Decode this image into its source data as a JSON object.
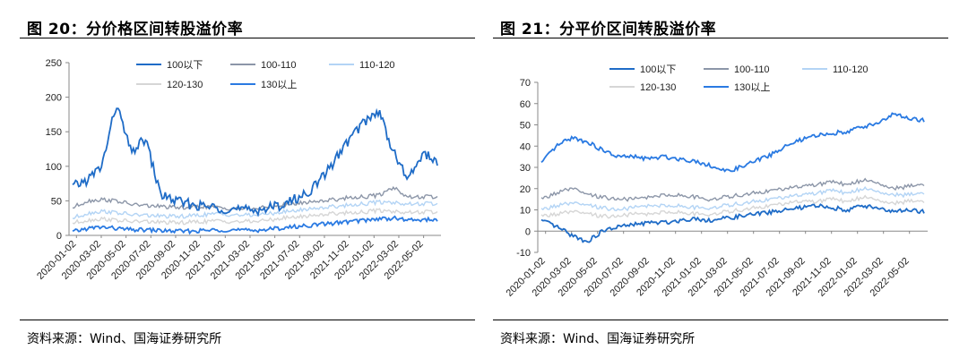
{
  "figures": [
    {
      "title": "图 20：分价格区间转股溢价率",
      "source": "资料来源：Wind、国海证券研究所"
    },
    {
      "title": "图 21：分平价区间转股溢价率",
      "source": "资料来源：Wind、国海证券研究所"
    }
  ],
  "colors": {
    "100以下": "#1f6cc7",
    "100-110": "#8c96a8",
    "110-120": "#b3d4f5",
    "120-130": "#d6d6d6",
    "130以上": "#2a7ae2"
  },
  "chart_data": [
    {
      "type": "line",
      "title": "",
      "x_ticks": [
        "2020-01-02",
        "2020-03-02",
        "2020-05-02",
        "2020-07-02",
        "2020-09-02",
        "2020-11-02",
        "2021-01-02",
        "2021-03-02",
        "2021-05-02",
        "2021-07-02",
        "2021-09-02",
        "2021-11-02",
        "2022-01-02",
        "2022-03-02",
        "2022-05-02"
      ],
      "ylim": [
        0,
        250
      ],
      "yticks": [
        0,
        50,
        100,
        150,
        200,
        250
      ],
      "legend": [
        "100以下",
        "100-110",
        "110-120",
        "120-130",
        "130以上"
      ],
      "series": [
        {
          "name": "100以下",
          "values": [
            70,
            80,
            100,
            190,
            120,
            140,
            60,
            50,
            45,
            42,
            40,
            38,
            36,
            38,
            42,
            50,
            60,
            80,
            110,
            140,
            165,
            180,
            120,
            80,
            120,
            105
          ]
        },
        {
          "name": "100-110",
          "values": [
            40,
            50,
            52,
            50,
            45,
            43,
            42,
            40,
            41,
            42,
            40,
            39,
            38,
            40,
            43,
            45,
            48,
            50,
            52,
            55,
            56,
            58,
            70,
            55,
            56,
            55
          ]
        },
        {
          "name": "110-120",
          "values": [
            25,
            32,
            35,
            33,
            30,
            29,
            28,
            27,
            28,
            30,
            31,
            30,
            29,
            30,
            33,
            35,
            38,
            40,
            42,
            44,
            46,
            48,
            48,
            45,
            46,
            45
          ]
        },
        {
          "name": "120-130",
          "values": [
            18,
            22,
            24,
            22,
            20,
            20,
            19,
            18,
            19,
            20,
            21,
            20,
            20,
            21,
            24,
            26,
            28,
            30,
            32,
            33,
            34,
            36,
            35,
            33,
            34,
            33
          ]
        },
        {
          "name": "130以上",
          "values": [
            5,
            10,
            12,
            10,
            8,
            8,
            7,
            6,
            6,
            7,
            8,
            8,
            7,
            8,
            10,
            12,
            14,
            16,
            18,
            20,
            22,
            24,
            25,
            22,
            23,
            22
          ]
        }
      ]
    },
    {
      "type": "line",
      "title": "",
      "x_ticks": [
        "2020-01-02",
        "2020-03-02",
        "2020-05-02",
        "2020-07-02",
        "2020-09-02",
        "2020-11-02",
        "2021-01-02",
        "2021-03-02",
        "2021-05-02",
        "2021-07-02",
        "2021-09-02",
        "2021-11-02",
        "2022-01-02",
        "2022-03-02",
        "2022-05-02"
      ],
      "ylim": [
        -10,
        70
      ],
      "yticks": [
        -10,
        0,
        10,
        20,
        30,
        40,
        50,
        60,
        70
      ],
      "legend": [
        "100以下",
        "100-110",
        "110-120",
        "120-130",
        "130以上"
      ],
      "series": [
        {
          "name": "100以下",
          "values": [
            5,
            2,
            -2,
            -5,
            0,
            2,
            3,
            4,
            4,
            5,
            6,
            5,
            6,
            7,
            8,
            9,
            10,
            11,
            12,
            11,
            10,
            12,
            11,
            9,
            10,
            9
          ]
        },
        {
          "name": "100-110",
          "values": [
            15,
            18,
            20,
            17,
            16,
            15,
            15,
            16,
            17,
            17,
            16,
            15,
            16,
            17,
            18,
            19,
            20,
            21,
            22,
            23,
            22,
            24,
            23,
            20,
            21,
            22
          ]
        },
        {
          "name": "110-120",
          "values": [
            10,
            12,
            13,
            12,
            11,
            10,
            11,
            12,
            12,
            12,
            11,
            11,
            12,
            13,
            14,
            15,
            16,
            17,
            18,
            19,
            18,
            20,
            19,
            17,
            17,
            18
          ]
        },
        {
          "name": "120-130",
          "values": [
            7,
            8,
            9,
            8,
            7,
            7,
            8,
            8,
            9,
            9,
            8,
            8,
            9,
            10,
            11,
            12,
            13,
            14,
            14,
            15,
            14,
            16,
            15,
            13,
            14,
            14
          ]
        },
        {
          "name": "130以上",
          "values": [
            32,
            40,
            44,
            42,
            38,
            35,
            35,
            34,
            35,
            34,
            33,
            31,
            28,
            30,
            33,
            36,
            40,
            43,
            45,
            46,
            47,
            49,
            51,
            55,
            53,
            52
          ]
        }
      ]
    }
  ]
}
